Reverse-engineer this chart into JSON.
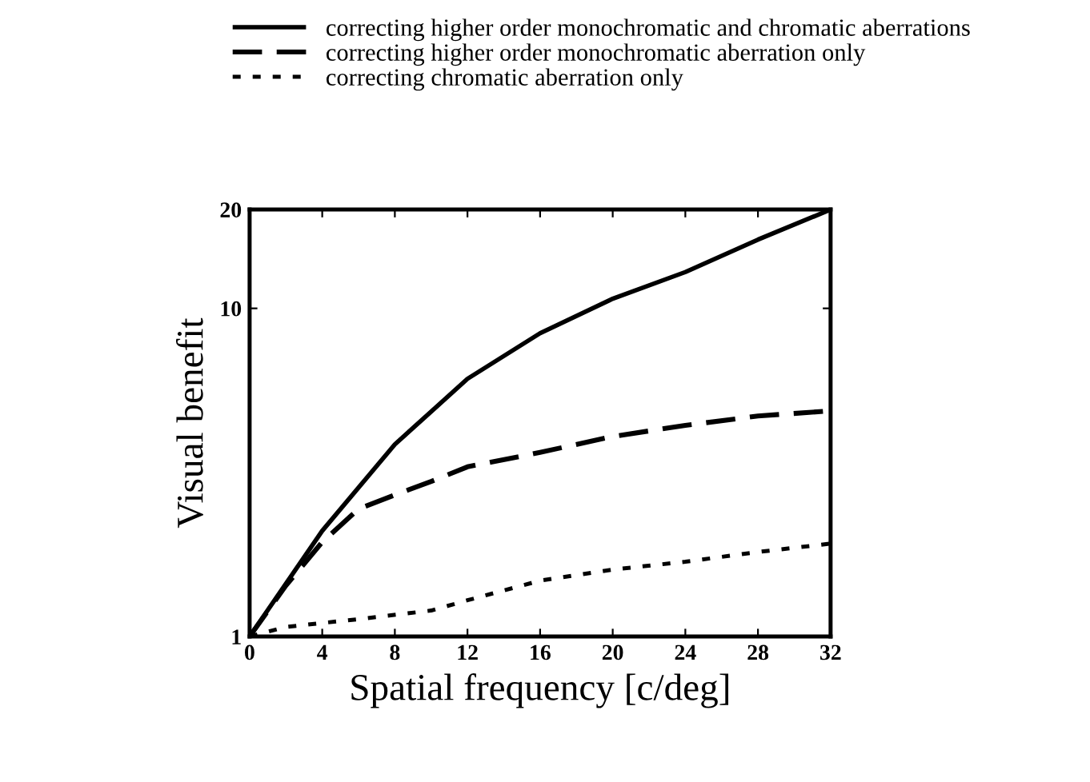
{
  "chart_data": {
    "type": "line",
    "xlabel": "Spatial frequency [c/deg]",
    "ylabel": "Visual benefit",
    "log": "y",
    "legend": "top",
    "grid": false,
    "xlim": [
      0,
      32
    ],
    "xticks": [
      0,
      4,
      8,
      12,
      16,
      20,
      24,
      28,
      32
    ],
    "ylim": [
      1,
      20
    ],
    "yticks": [
      1,
      10,
      20
    ],
    "series": [
      {
        "name": "correcting higher order monochromatic and chromatic aberrations",
        "color": "#000000",
        "line_style": "solid",
        "x": [
          0,
          4,
          8,
          12,
          16,
          20,
          24,
          28,
          32
        ],
        "values": [
          1,
          2.1,
          3.85,
          6.1,
          8.4,
          10.7,
          12.9,
          16.2,
          20
        ]
      },
      {
        "name": "correcting higher order monochromatic aberration only",
        "color": "#000000",
        "line_style": "dashed",
        "x": [
          0,
          2,
          4,
          6,
          8,
          10,
          12,
          16,
          20,
          24,
          28,
          32
        ],
        "values": [
          1,
          1.43,
          1.94,
          2.45,
          2.7,
          2.97,
          3.29,
          3.64,
          4.07,
          4.4,
          4.7,
          4.87
        ]
      },
      {
        "name": "correcting chromatic aberration only",
        "color": "#000000",
        "line_style": "dotted",
        "x": [
          0,
          2,
          6,
          10,
          12,
          16,
          20,
          24,
          28,
          32
        ],
        "values": [
          1,
          1.07,
          1.13,
          1.2,
          1.29,
          1.48,
          1.6,
          1.69,
          1.81,
          1.92
        ]
      }
    ]
  }
}
